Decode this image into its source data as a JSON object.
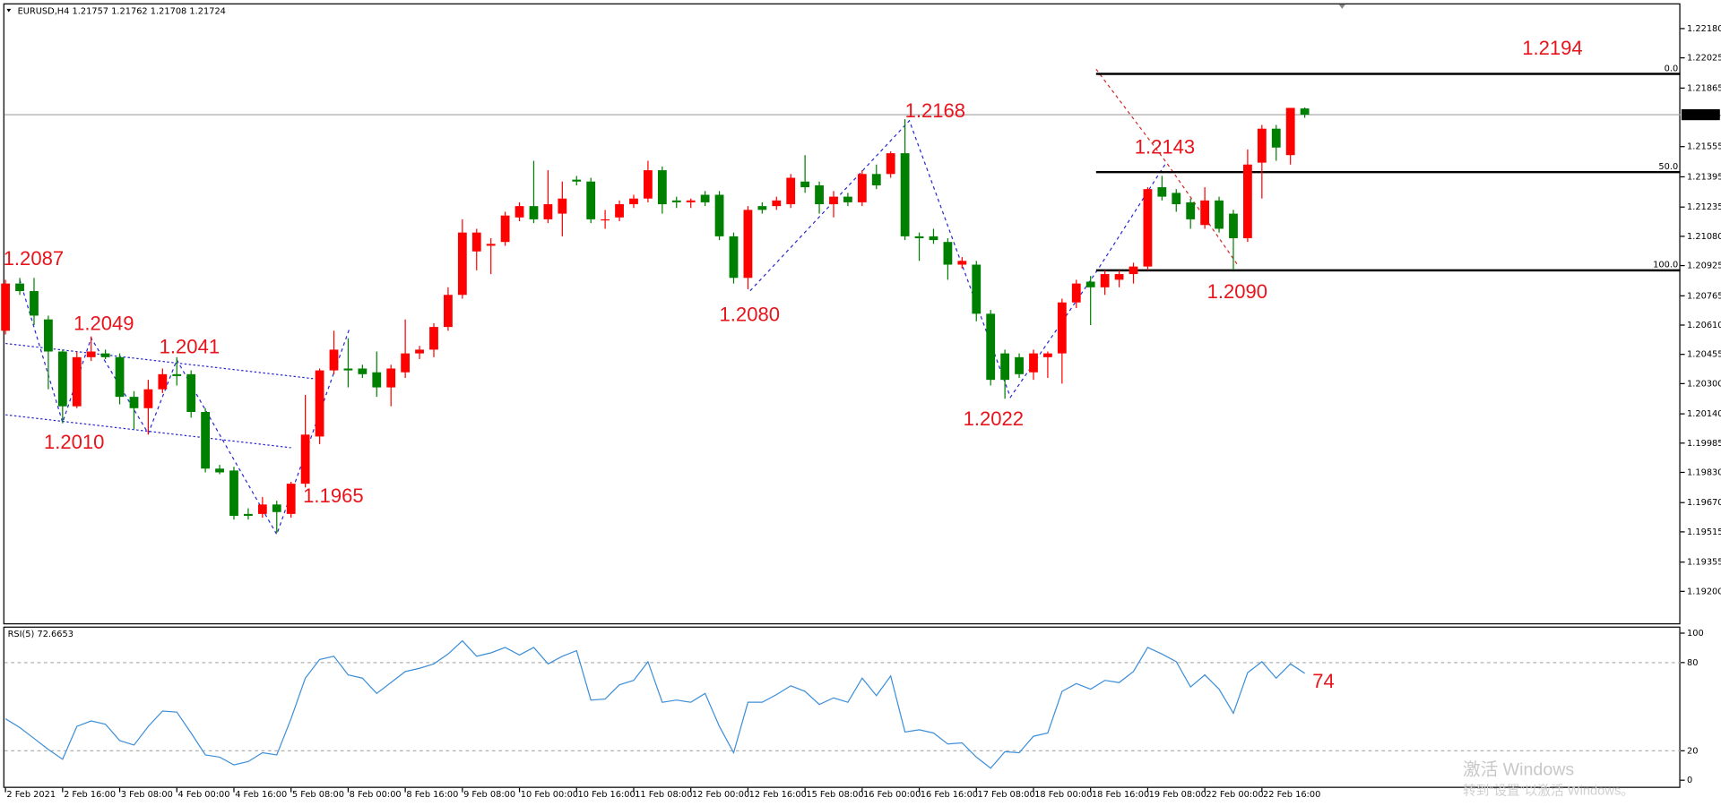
{
  "chart_data": [
    {
      "type": "candlestick",
      "title": "EURUSD,H4  1.21757 1.21762 1.21708 1.21724",
      "categories": [
        "2 Feb 2021",
        null,
        null,
        null,
        "2 Feb 16:00",
        null,
        null,
        null,
        "3 Feb 08:00",
        null,
        null,
        null,
        "4 Feb 00:00",
        null,
        null,
        null,
        "4 Feb 16:00",
        null,
        null,
        null,
        "5 Feb 08:00",
        null,
        null,
        null,
        "8 Feb 00:00",
        null,
        null,
        null,
        "8 Feb 16:00",
        null,
        null,
        null,
        "9 Feb 08:00",
        null,
        null,
        null,
        "10 Feb 00:00",
        null,
        null,
        null,
        "10 Feb 16:00",
        null,
        null,
        null,
        "11 Feb 08:00",
        null,
        null,
        null,
        "12 Feb 00:00",
        null,
        null,
        null,
        "12 Feb 16:00",
        null,
        null,
        null,
        "15 Feb 08:00",
        null,
        null,
        null,
        "16 Feb 00:00",
        null,
        null,
        null,
        "16 Feb 16:00",
        null,
        null,
        null,
        "17 Feb 08:00",
        null,
        null,
        null,
        "18 Feb 00:00",
        null,
        null,
        null,
        "18 Feb 16:00",
        null,
        null,
        null,
        "19 Feb 08:00",
        null,
        null,
        null,
        "22 Feb 00:00",
        null,
        null,
        null,
        "22 Feb 16:00",
        null,
        null,
        null
      ],
      "open": [
        1.2058,
        1.2083,
        1.2079,
        1.2064,
        1.2047,
        1.2018,
        1.2044,
        1.2046,
        1.2044,
        1.2023,
        1.2017,
        1.2027,
        1.2035,
        1.2035,
        1.2015,
        1.1985,
        1.1984,
        1.1961,
        1.1961,
        1.1966,
        1.1961,
        1.1977,
        1.2002,
        1.2037,
        1.2038,
        1.2038,
        1.2036,
        1.2028,
        1.2036,
        1.2046,
        1.2048,
        1.206,
        1.2077,
        1.21,
        1.2103,
        1.2105,
        1.2118,
        1.2124,
        1.2117,
        1.212,
        1.2138,
        1.2137,
        1.2117,
        1.2118,
        1.2125,
        1.2128,
        1.2143,
        1.2127,
        1.2126,
        1.213,
        1.213,
        1.2108,
        1.2086,
        1.2124,
        1.2124,
        1.2125,
        1.2137,
        1.2135,
        1.2125,
        1.2129,
        1.2126,
        1.2141,
        1.2141,
        1.2152,
        1.2108,
        1.2108,
        1.2105,
        1.2093,
        1.2093,
        1.2067,
        1.2046,
        1.2044,
        1.2036,
        1.2044,
        1.2046,
        1.2073,
        1.2084,
        1.2081,
        1.2085,
        1.2088,
        1.2092,
        1.2134,
        1.2131,
        1.2126,
        1.2114,
        1.2127,
        1.212,
        1.2107,
        1.2147,
        1.2165,
        1.2151,
        1.21757
      ],
      "high": [
        1.2085,
        1.2086,
        1.2086,
        1.2066,
        1.2048,
        1.2047,
        1.2055,
        1.2048,
        1.2046,
        1.2026,
        1.2032,
        1.2038,
        1.2044,
        1.2037,
        1.2017,
        1.1987,
        1.1986,
        1.1964,
        1.197,
        1.1968,
        1.1978,
        1.2024,
        1.2038,
        1.2058,
        1.2054,
        1.204,
        1.2047,
        1.204,
        1.2064,
        1.205,
        1.2062,
        1.2081,
        1.2117,
        1.2112,
        1.2107,
        1.2121,
        1.2126,
        1.2148,
        1.2143,
        1.2137,
        1.214,
        1.2139,
        1.2122,
        1.2127,
        1.213,
        1.2148,
        1.2145,
        1.2129,
        1.2128,
        1.2132,
        1.2132,
        1.211,
        1.2124,
        1.2126,
        1.2129,
        1.2141,
        1.2151,
        1.2137,
        1.2132,
        1.2131,
        1.2143,
        1.2146,
        1.2153,
        1.217,
        1.211,
        1.2112,
        1.2107,
        1.2097,
        1.2095,
        1.2069,
        1.2048,
        1.2046,
        1.2048,
        1.2047,
        1.2075,
        1.2085,
        1.2087,
        1.209,
        1.209,
        1.2094,
        1.2134,
        1.214,
        1.2133,
        1.2128,
        1.2134,
        1.2129,
        1.2122,
        1.2154,
        1.2167,
        1.2167,
        1.2176,
        1.21762
      ],
      "low": [
        1.2056,
        1.2077,
        1.2061,
        1.2027,
        1.2009,
        1.2017,
        1.2042,
        1.2043,
        1.2019,
        1.2006,
        1.2003,
        1.2025,
        1.2029,
        1.2012,
        1.1983,
        1.1982,
        1.1958,
        1.1958,
        1.1959,
        1.1951,
        1.1959,
        1.1975,
        1.1998,
        1.2035,
        1.2028,
        1.2033,
        1.2023,
        1.2018,
        1.2033,
        1.2043,
        1.2044,
        1.2058,
        1.2075,
        1.209,
        1.2088,
        1.2103,
        1.2116,
        1.2115,
        1.2115,
        1.2108,
        1.2135,
        1.2115,
        1.2112,
        1.2116,
        1.2123,
        1.2126,
        1.212,
        1.2123,
        1.2123,
        1.2124,
        1.2106,
        1.2083,
        1.208,
        1.212,
        1.2122,
        1.2123,
        1.2131,
        1.212,
        1.2118,
        1.2124,
        1.2124,
        1.2133,
        1.2139,
        1.2106,
        1.2095,
        1.2104,
        1.2085,
        1.2091,
        1.2063,
        1.2029,
        1.2022,
        1.2033,
        1.2032,
        1.2033,
        1.203,
        1.207,
        1.2061,
        1.2077,
        1.2081,
        1.2083,
        1.209,
        1.2127,
        1.2121,
        1.2112,
        1.2112,
        1.211,
        1.209,
        1.2105,
        1.2128,
        1.2148,
        1.2146,
        1.21708
      ],
      "close": [
        1.2083,
        1.2079,
        1.2066,
        1.2047,
        1.2018,
        1.2044,
        1.2047,
        1.2044,
        1.2023,
        1.2017,
        1.2027,
        1.2035,
        1.2034,
        1.2015,
        1.1985,
        1.1983,
        1.196,
        1.196,
        1.1966,
        1.1962,
        1.1977,
        1.2003,
        1.2037,
        1.2048,
        1.2037,
        1.2035,
        1.2028,
        1.2038,
        1.2046,
        1.2048,
        1.206,
        1.2077,
        1.211,
        1.211,
        1.2104,
        1.2119,
        1.2124,
        1.2117,
        1.2125,
        1.2128,
        1.2137,
        1.2117,
        1.2117,
        1.2125,
        1.2128,
        1.2143,
        1.2125,
        1.2126,
        1.2127,
        1.2126,
        1.2108,
        1.2086,
        1.2122,
        1.2122,
        1.2127,
        1.2139,
        1.2134,
        1.2125,
        1.2129,
        1.2126,
        1.2141,
        1.2135,
        1.2152,
        1.2108,
        1.2107,
        1.2106,
        1.2093,
        1.2095,
        1.2067,
        1.2032,
        1.2032,
        1.2035,
        1.2046,
        1.2046,
        1.2073,
        1.2083,
        1.2081,
        1.2088,
        1.2088,
        1.2092,
        1.2133,
        1.2129,
        1.2125,
        1.2117,
        1.2127,
        1.2112,
        1.2107,
        1.2146,
        1.2165,
        1.2155,
        1.2176,
        1.21724
      ],
      "up_color": "#ff0000",
      "down_color": "#008000",
      "ylim": [
        1.19031,
        1.22308
      ],
      "yticks": [
        {
          "value": 1.2218,
          "label": "1.22180"
        },
        1.22025,
        1.21865,
        1.21555,
        1.21395,
        1.21235,
        {
          "value": 1.2108,
          "label": "1.21080"
        },
        1.20925,
        1.20765,
        {
          "value": 1.2061,
          "label": "1.20610"
        },
        1.20455,
        {
          "value": 1.203,
          "label": "1.20300"
        },
        {
          "value": 1.2014,
          "label": "1.20140"
        },
        1.19985,
        {
          "value": 1.1983,
          "label": "1.19830"
        },
        {
          "value": 1.1967,
          "label": "1.19670"
        },
        1.19515,
        1.19355,
        {
          "value": 1.192,
          "label": "1.19200"
        }
      ],
      "current_price": 1.21724,
      "fib_levels": [
        {
          "value": 1.2194,
          "label": "0.0"
        },
        {
          "value": 1.2142,
          "label": "50.0"
        },
        {
          "value": 1.209,
          "label": "100.0"
        }
      ],
      "annotations": [
        "1.2087",
        "1.2049",
        "1.2041",
        "1.2010",
        "1.1965",
        "1.2080",
        "1.2168",
        "1.2022",
        "1.2143",
        "1.2090",
        "1.2194"
      ]
    },
    {
      "type": "line",
      "title": "RSI(5) 72.6653",
      "values": [
        41.8,
        35.8,
        28.4,
        20.9,
        14.2,
        36.6,
        40.3,
        38.1,
        26.9,
        23.9,
        36.6,
        47.0,
        46.3,
        32.1,
        17.2,
        15.7,
        10.4,
        12.7,
        18.7,
        17.2,
        41.8,
        69.4,
        82.1,
        84.3,
        71.6,
        69.4,
        59.0,
        66.4,
        73.9,
        76.1,
        79.1,
        85.8,
        94.8,
        84.3,
        86.6,
        90.3,
        85.1,
        90.3,
        79.1,
        84.3,
        88.1,
        54.5,
        55.2,
        64.9,
        67.9,
        80.6,
        53.0,
        54.5,
        53.0,
        59.0,
        36.6,
        18.7,
        53.0,
        53.0,
        58.2,
        64.2,
        60.4,
        51.5,
        56.0,
        53.0,
        69.4,
        57.5,
        70.9,
        32.8,
        34.3,
        32.1,
        24.6,
        25.4,
        15.7,
        8.2,
        19.4,
        18.7,
        29.9,
        32.1,
        60.4,
        65.7,
        61.9,
        67.9,
        66.4,
        73.9,
        90.3,
        85.8,
        80.6,
        63.4,
        71.6,
        61.9,
        45.5,
        73.1,
        80.6,
        69.4,
        79.1,
        72.7
      ],
      "color": "#3d8fd8",
      "ylim": [
        0,
        100
      ],
      "yticks": [
        0,
        20,
        80,
        100
      ],
      "levels": [
        20,
        80
      ],
      "annotation": "74"
    }
  ],
  "watermark": [
    "激活 Windows",
    "转到“设置”以激活 Windows。"
  ]
}
